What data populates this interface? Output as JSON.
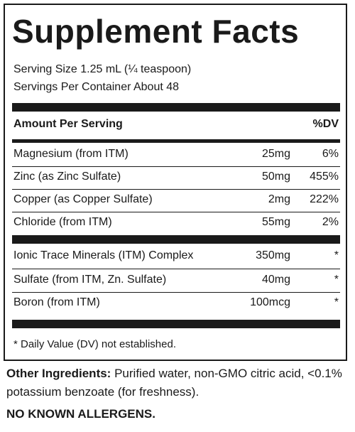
{
  "title": "Supplement Facts",
  "serving_size": "Serving Size 1.25 mL (¼ teaspoon)",
  "servings_per_container": "Servings Per Container About 48",
  "header": {
    "amount_label": "Amount Per Serving",
    "dv_label": "%DV"
  },
  "group1": [
    {
      "name": "Magnesium (from ITM)",
      "amount": "25mg",
      "dv": "6%"
    },
    {
      "name": "Zinc (as Zinc Sulfate)",
      "amount": "50mg",
      "dv": "455%"
    },
    {
      "name": "Copper (as Copper Sulfate)",
      "amount": "2mg",
      "dv": "222%"
    },
    {
      "name": "Chloride (from ITM)",
      "amount": "55mg",
      "dv": "2%"
    }
  ],
  "group2": [
    {
      "name": "Ionic Trace Minerals (ITM) Complex",
      "amount": "350mg",
      "dv": "*"
    },
    {
      "name": "Sulfate (from ITM, Zn. Sulfate)",
      "amount": "40mg",
      "dv": "*"
    },
    {
      "name": "Boron (from ITM)",
      "amount": "100mcg",
      "dv": "*"
    }
  ],
  "footnote": "* Daily Value (DV) not established.",
  "other_ingredients": {
    "label": "Other Ingredients:",
    "text": "Purified water, non-GMO citric acid, <0.1% potassium benzoate (for freshness)."
  },
  "allergen_statement": "NO KNOWN ALLERGENS."
}
